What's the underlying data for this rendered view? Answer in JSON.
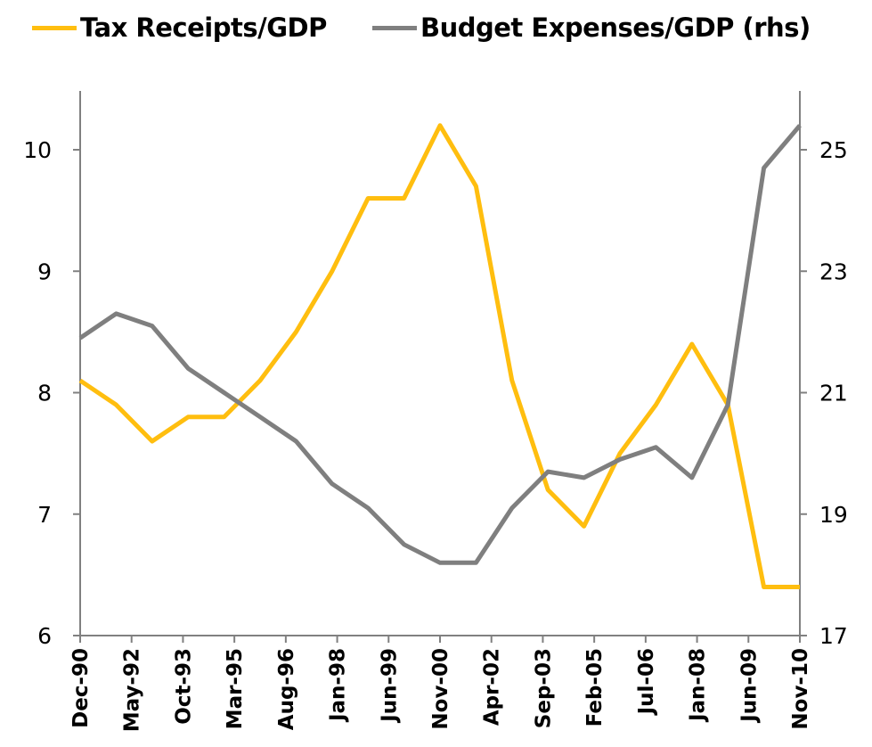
{
  "colors": {
    "tax": "#FFBE0F",
    "expenses": "#7F7F7F",
    "axis": "#808080"
  },
  "legend": {
    "tax_label": "Tax Receipts/GDP",
    "expenses_label": "Budget Expenses/GDP (rhs)"
  },
  "chart_data": {
    "type": "line",
    "title": "",
    "xlabel": "",
    "ylabel": "",
    "ylim": [
      6,
      10
    ],
    "y2lim": [
      17,
      25
    ],
    "yticks": [
      "6",
      "7",
      "8",
      "9",
      "10"
    ],
    "y2ticks": [
      "17",
      "19",
      "21",
      "23",
      "25"
    ],
    "x": [
      "Dec-90",
      "Dec-91",
      "Dec-92",
      "Dec-93",
      "Dec-94",
      "Dec-95",
      "Dec-96",
      "Dec-97",
      "Dec-98",
      "Dec-99",
      "Dec-00",
      "Dec-01",
      "Dec-02",
      "Dec-03",
      "Dec-04",
      "Dec-05",
      "Dec-06",
      "Dec-07",
      "Dec-08",
      "Dec-09",
      "Dec-10"
    ],
    "xticks": [
      "Dec-90",
      "May-92",
      "Oct-93",
      "Mar-95",
      "Aug-96",
      "Jan-98",
      "Jun-99",
      "Nov-00",
      "Apr-02",
      "Sep-03",
      "Feb-05",
      "Jul-06",
      "Jan-08",
      "Jun-09",
      "Nov-10"
    ],
    "series": [
      {
        "name": "Tax Receipts/GDP",
        "axis": "left",
        "values": [
          8.1,
          7.9,
          7.6,
          7.8,
          7.8,
          8.1,
          8.5,
          9.0,
          9.6,
          9.6,
          10.2,
          9.7,
          8.1,
          7.2,
          6.9,
          7.5,
          7.9,
          8.4,
          7.9,
          6.4,
          6.4
        ]
      },
      {
        "name": "Budget Expenses/GDP (rhs)",
        "axis": "right",
        "values": [
          21.9,
          22.3,
          22.1,
          21.4,
          21.0,
          20.6,
          20.2,
          19.5,
          19.1,
          18.5,
          18.2,
          18.2,
          19.1,
          19.7,
          19.6,
          19.9,
          20.1,
          19.6,
          20.8,
          24.7,
          25.4
        ]
      }
    ]
  }
}
